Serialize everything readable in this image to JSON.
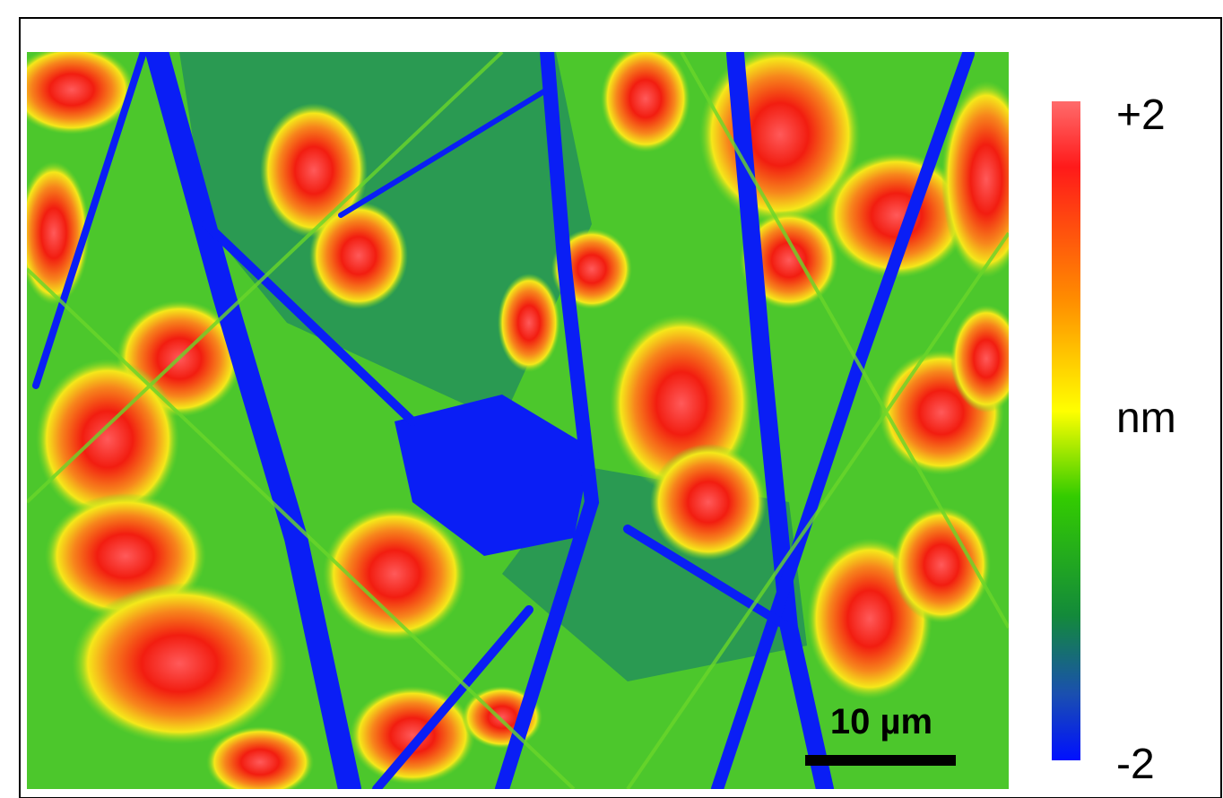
{
  "colorbar": {
    "max_label": "+2",
    "unit": "nm",
    "min_label": "-2"
  },
  "scale_bar": {
    "label": "10 µm"
  }
}
